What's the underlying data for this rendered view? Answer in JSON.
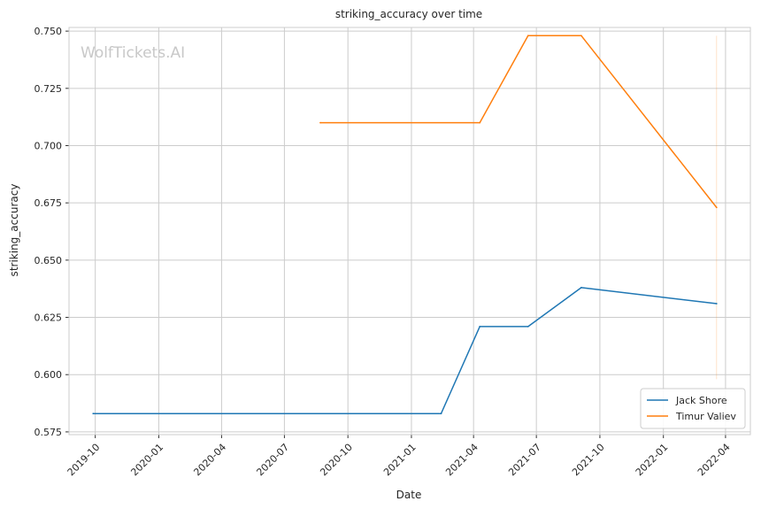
{
  "watermark": "WolfTickets.AI",
  "chart_data": {
    "type": "line",
    "title": "striking_accuracy over time",
    "xlabel": "Date",
    "ylabel": "striking_accuracy",
    "x_ticks": [
      "2019-10",
      "2020-01",
      "2020-04",
      "2020-07",
      "2020-10",
      "2021-01",
      "2021-04",
      "2021-07",
      "2021-10",
      "2022-01",
      "2022-04"
    ],
    "y_ticks": [
      0.575,
      0.6,
      0.625,
      0.65,
      0.675,
      0.7,
      0.725,
      0.75
    ],
    "y_tick_labels": [
      "0.575",
      "0.600",
      "0.625",
      "0.650",
      "0.675",
      "0.700",
      "0.725",
      "0.750"
    ],
    "xlim": [
      "2019-08-24",
      "2022-05-07"
    ],
    "ylim": [
      0.5738,
      0.7516
    ],
    "grid": true,
    "legend_position": "lower-right",
    "series": [
      {
        "name": "Jack Shore",
        "color": "#1f77b4",
        "x": [
          "2019-09-28",
          "2021-02-13",
          "2021-04-10",
          "2021-06-19",
          "2021-09-04",
          "2022-03-19"
        ],
        "y": [
          0.583,
          0.583,
          0.621,
          0.621,
          0.638,
          0.631
        ]
      },
      {
        "name": "Timur Valiev",
        "color": "#ff7f0e",
        "x": [
          "2020-08-22",
          "2021-04-10",
          "2021-06-19",
          "2021-09-04",
          "2022-03-19"
        ],
        "y": [
          0.71,
          0.71,
          0.748,
          0.748,
          0.673
        ]
      }
    ],
    "vline": {
      "x": "2022-03-19",
      "y": [
        0.598,
        0.748
      ],
      "color": "#ff7f0e"
    }
  }
}
